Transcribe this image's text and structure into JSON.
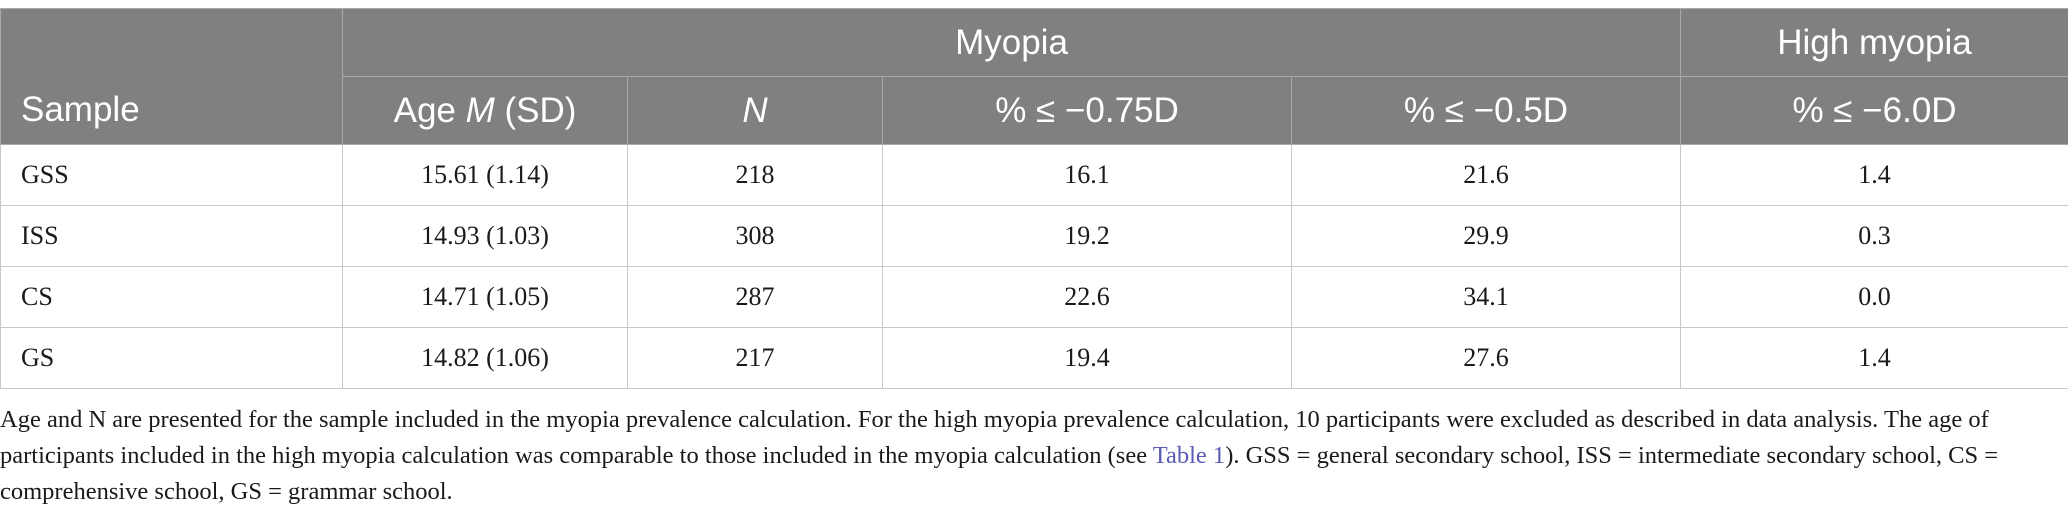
{
  "table": {
    "header": {
      "sample": "Sample",
      "myopia_group": "Myopia",
      "high_myopia_group": "High myopia",
      "age_prefix": "Age ",
      "age_italic": "M",
      "age_suffix": " (SD)",
      "n": "N",
      "myopia_075": "% ≤ −0.75D",
      "myopia_05": "% ≤ −0.5D",
      "high_myopia_6": "% ≤ −6.0D"
    },
    "rows": [
      {
        "sample": "GSS",
        "age": "15.61 (1.14)",
        "n": "218",
        "m075": "16.1",
        "m05": "21.6",
        "high": "1.4"
      },
      {
        "sample": "ISS",
        "age": "14.93 (1.03)",
        "n": "308",
        "m075": "19.2",
        "m05": "29.9",
        "high": "0.3"
      },
      {
        "sample": "CS",
        "age": "14.71 (1.05)",
        "n": "287",
        "m075": "22.6",
        "m05": "34.1",
        "high": "0.0"
      },
      {
        "sample": "GS",
        "age": "14.82 (1.06)",
        "n": "217",
        "m075": "19.4",
        "m05": "27.6",
        "high": "1.4"
      }
    ]
  },
  "footnote": {
    "before_link": "Age and N are presented for the sample included in the myopia prevalence calculation. For the high myopia prevalence calculation, 10 participants were excluded as described in data analysis. The age of participants included in the high myopia calculation was comparable to those included in the myopia calculation (see ",
    "link": "Table 1",
    "after_link": "). GSS = general secondary school, ISS = intermediate secondary school, CS = comprehensive school, GS = grammar school."
  },
  "colors": {
    "header_bg": "#808080",
    "header_text": "#ffffff",
    "link": "#5a5ab8"
  }
}
